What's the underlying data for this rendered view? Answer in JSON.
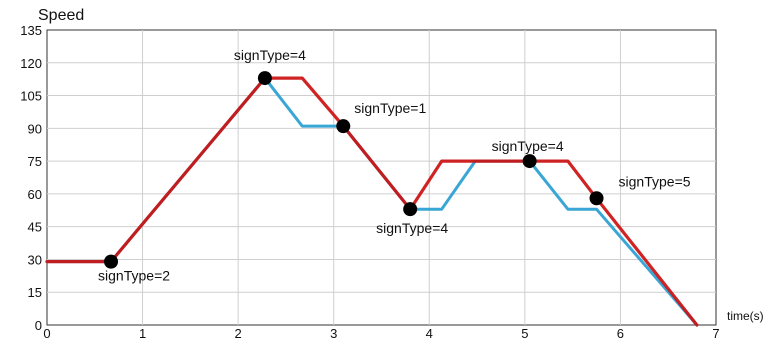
{
  "chart_data": {
    "type": "line",
    "ylabel": "Speed",
    "xlabel": "time(s)",
    "xlim": [
      0,
      7
    ],
    "ylim": [
      0,
      135
    ],
    "xticks": [
      0,
      1,
      2,
      3,
      4,
      5,
      6,
      7
    ],
    "yticks": [
      0,
      15,
      30,
      45,
      60,
      75,
      90,
      105,
      120,
      135
    ],
    "grid": true,
    "series": [
      {
        "color": "#cc1111",
        "points": [
          [
            0,
            29
          ],
          [
            0.67,
            29
          ],
          [
            2.28,
            113
          ],
          [
            2.67,
            113
          ],
          [
            3.1,
            91
          ],
          [
            3.8,
            53
          ],
          [
            4.13,
            75
          ],
          [
            5.05,
            75
          ],
          [
            5.45,
            75
          ],
          [
            5.75,
            58
          ],
          [
            6.8,
            0
          ]
        ]
      },
      {
        "color": "#39a6d6",
        "points": [
          [
            0,
            29
          ],
          [
            0.67,
            29
          ],
          [
            2.28,
            113
          ],
          [
            2.67,
            91
          ],
          [
            3.1,
            91
          ],
          [
            3.8,
            53
          ],
          [
            4.13,
            53
          ],
          [
            4.48,
            75
          ],
          [
            5.05,
            75
          ],
          [
            5.45,
            53
          ],
          [
            5.75,
            53
          ],
          [
            6.8,
            0
          ]
        ]
      }
    ],
    "markers": [
      {
        "x": 0.67,
        "y": 29,
        "label": "signType=2"
      },
      {
        "x": 2.28,
        "y": 113,
        "label": "signType=4"
      },
      {
        "x": 3.1,
        "y": 91,
        "label": "signType=1"
      },
      {
        "x": 3.8,
        "y": 53,
        "label": "signType=4"
      },
      {
        "x": 5.05,
        "y": 75,
        "label": "signType=4"
      },
      {
        "x": 5.75,
        "y": 58,
        "label": "signType=5"
      }
    ],
    "colors": {
      "grid": "#cfcfcf",
      "axis": "#333333",
      "marker": "#000000"
    }
  }
}
